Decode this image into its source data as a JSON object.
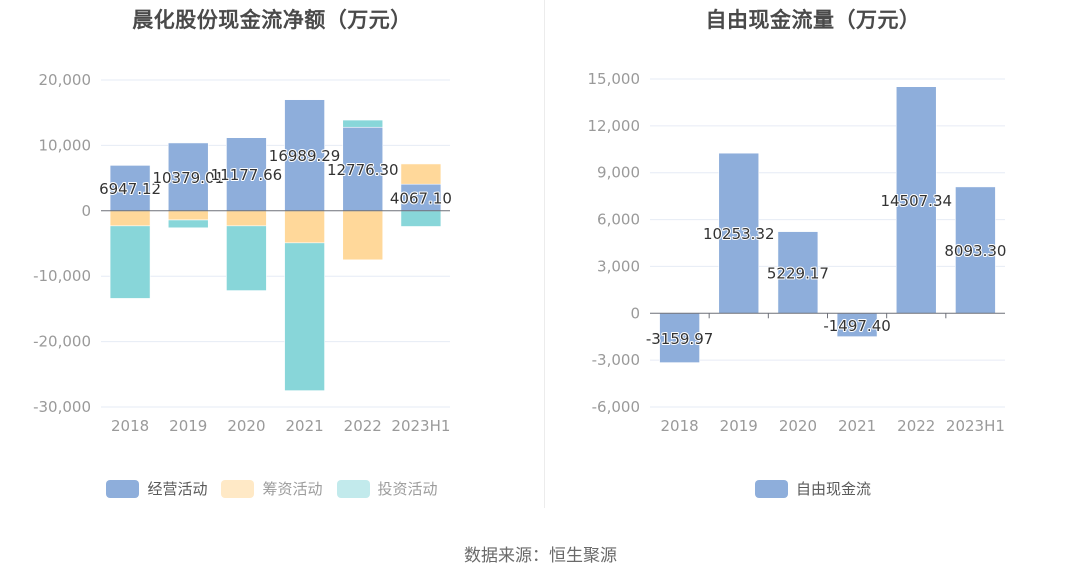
{
  "source_note": "数据来源：恒生聚源",
  "chart_data": [
    {
      "id": "net-cashflow",
      "type": "bar",
      "stacked": true,
      "title": "晨化股份现金流净额（万元）",
      "xlabel": "",
      "ylabel": "",
      "categories": [
        "2018",
        "2019",
        "2020",
        "2021",
        "2022",
        "2023H1"
      ],
      "ylim": [
        -30000,
        20000
      ],
      "yticks": [
        20000,
        10000,
        0,
        -10000,
        -20000,
        -30000
      ],
      "ytick_labels": [
        "20,000",
        "10,000",
        "0",
        "-10,000",
        "-20,000",
        "-30,000"
      ],
      "grid": true,
      "legend_position": "bottom-center",
      "series": [
        {
          "name": "经营活动",
          "color": "#8eaedb",
          "legend_dim": false,
          "values": [
            6947.12,
            10379.01,
            11177.66,
            16989.29,
            12776.3,
            4067.1
          ],
          "labels": [
            "6947.12",
            "10379.01",
            "11177.66",
            "16989.29",
            "12776.30",
            "4067.10"
          ]
        },
        {
          "name": "筹资活动",
          "color": "#ffd89a",
          "legend_color": "#ffe9c6",
          "legend_dim": true,
          "values": [
            -2300,
            -1400,
            -2300,
            -4900,
            -7500,
            3100
          ]
        },
        {
          "name": "投资活动",
          "color": "#88d6d9",
          "legend_color": "#c2eaec",
          "legend_dim": true,
          "values": [
            -11100,
            -1200,
            -9900,
            -22600,
            1100,
            -2400
          ]
        }
      ]
    },
    {
      "id": "free-cashflow",
      "type": "bar",
      "title": "自由现金流量（万元）",
      "xlabel": "",
      "ylabel": "",
      "categories": [
        "2018",
        "2019",
        "2020",
        "2021",
        "2022",
        "2023H1"
      ],
      "ylim": [
        -6000,
        15000
      ],
      "yticks": [
        15000,
        12000,
        9000,
        6000,
        3000,
        0,
        -3000,
        -6000
      ],
      "ytick_labels": [
        "15,000",
        "12,000",
        "9,000",
        "6,000",
        "3,000",
        "0",
        "-3,000",
        "-6,000"
      ],
      "grid": true,
      "legend_position": "bottom-center",
      "series": [
        {
          "name": "自由现金流",
          "color": "#8eaedb",
          "legend_dim": false,
          "values": [
            -3159.97,
            10253.32,
            5229.17,
            -1497.4,
            14507.34,
            8093.3
          ],
          "labels": [
            "-3159.97",
            "10253.32",
            "5229.17",
            "-1497.40",
            "14507.34",
            "8093.30"
          ]
        }
      ]
    }
  ]
}
